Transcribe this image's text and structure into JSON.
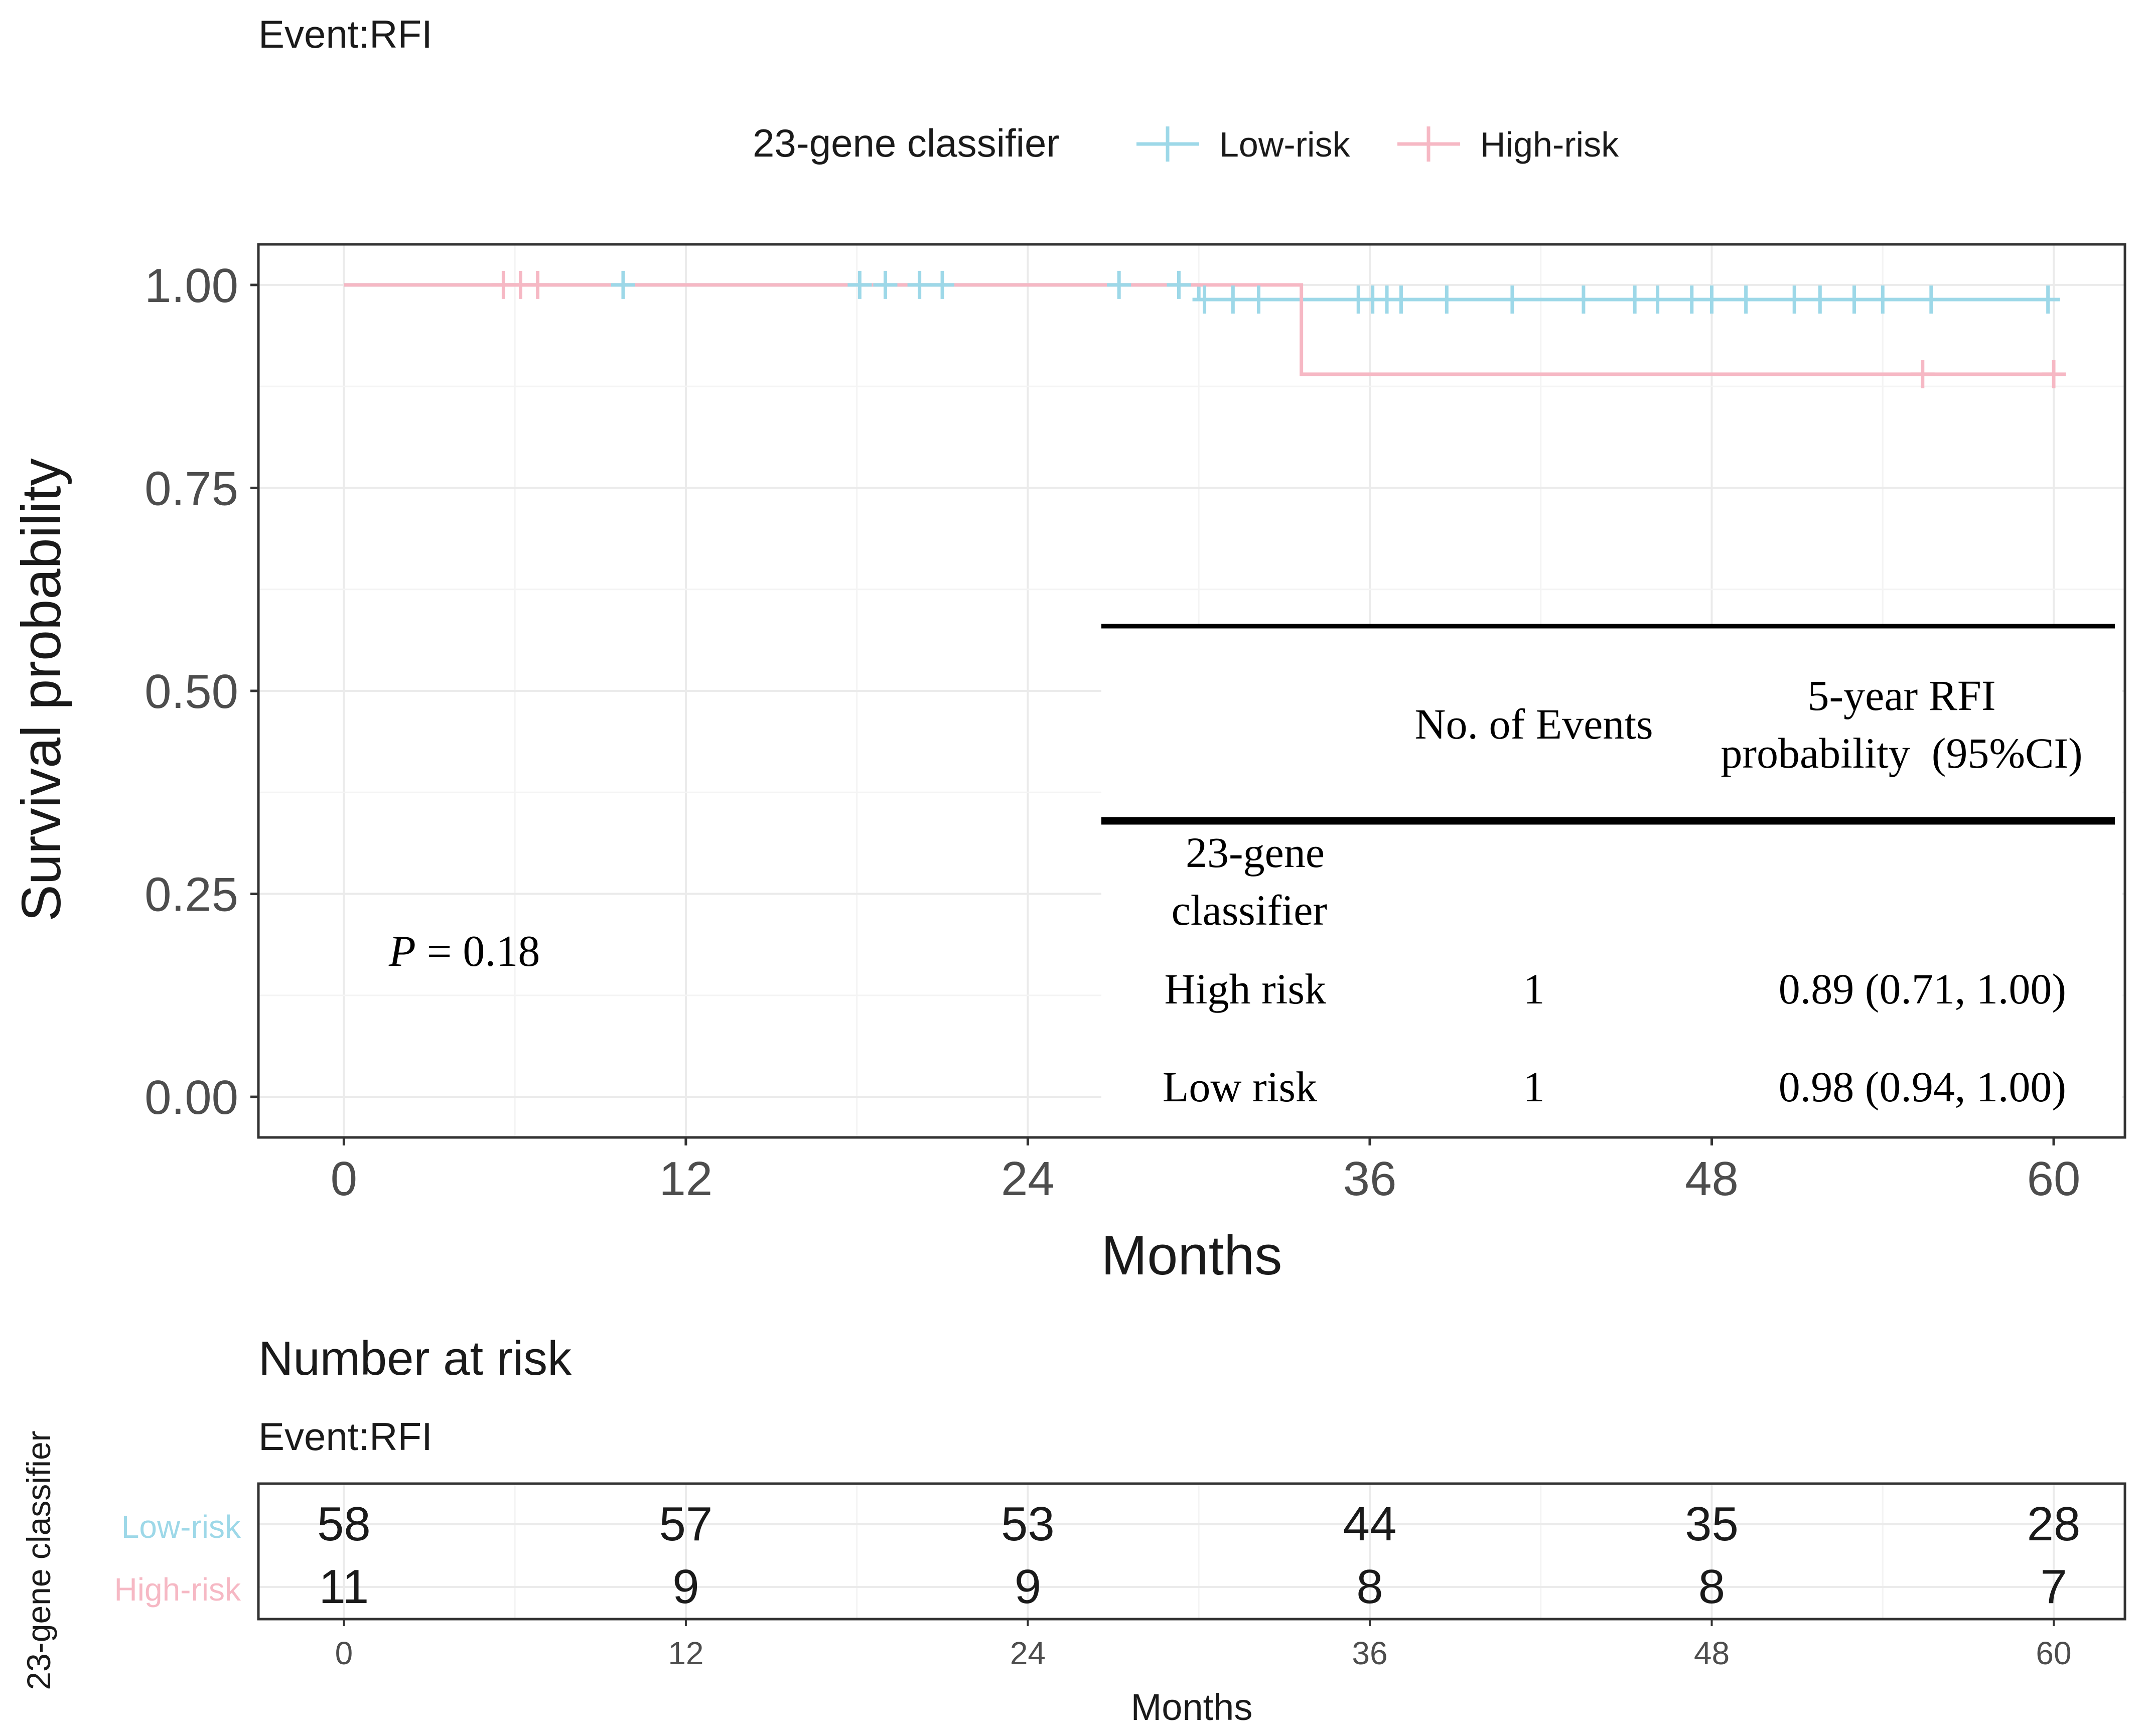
{
  "chart_data": {
    "type": "line",
    "subtype": "kaplan-meier",
    "subtitle": "Event:RFI",
    "legend": {
      "title": "23-gene classifier",
      "position": "top",
      "items": [
        {
          "label": "Low-risk",
          "color": "#9dd8e8"
        },
        {
          "label": "High-risk",
          "color": "#f6b8c4"
        }
      ]
    },
    "xlabel": "Months",
    "ylabel": "Survival probability",
    "xlim": [
      -3,
      62.5
    ],
    "ylim": [
      -0.05,
      1.05
    ],
    "xticks": [
      0,
      12,
      24,
      36,
      48,
      60
    ],
    "yticks": [
      0.0,
      0.25,
      0.5,
      0.75,
      1.0
    ],
    "ytick_labels": [
      "0.00",
      "0.25",
      "0.50",
      "0.75",
      "1.00"
    ],
    "p_value": {
      "label": "P",
      "text": " = 0.18"
    },
    "series": [
      {
        "name": "Low-risk",
        "color": "#9dd8e8",
        "steps": [
          [
            0,
            1.0
          ],
          [
            30.0,
            0.982
          ],
          [
            60.0,
            0.982
          ]
        ],
        "censor_times": [
          9.8,
          18.1,
          19.0,
          20.2,
          21.0,
          27.2,
          29.3,
          30.2,
          31.2,
          32.1,
          35.6,
          36.1,
          36.6,
          37.1,
          38.7,
          41.0,
          43.5,
          45.3,
          46.1,
          47.3,
          48.0,
          49.2,
          50.9,
          51.8,
          53.0,
          54.0,
          55.7,
          59.8
        ]
      },
      {
        "name": "High-risk",
        "color": "#f6b8c4",
        "steps": [
          [
            0,
            1.0
          ],
          [
            33.6,
            0.89
          ],
          [
            60.0,
            0.89
          ]
        ],
        "censor_times": [
          5.6,
          6.2,
          6.8,
          55.4,
          60.0
        ]
      }
    ],
    "table": {
      "headers": [
        "No. of Events",
        "5-year RFI",
        "probability  (95%CI)"
      ],
      "group_label_line1": "23-gene",
      "group_label_line2": "classifier",
      "rows": [
        {
          "label": "High risk",
          "events": "1",
          "prob": "0.89 (0.71, 1.00)"
        },
        {
          "label": "Low risk",
          "events": "1",
          "prob": "0.98 (0.94, 1.00)"
        }
      ]
    },
    "risk_table": {
      "title": "Number at risk",
      "subtitle": "Event:RFI",
      "ylabel": "23-gene classifier",
      "xlabel": "Months",
      "times": [
        0,
        12,
        24,
        36,
        48,
        60
      ],
      "rows": [
        {
          "label": "Low-risk",
          "color": "#9dd8e8",
          "counts": [
            58,
            57,
            53,
            44,
            35,
            28
          ]
        },
        {
          "label": "High-risk",
          "color": "#f6b8c4",
          "counts": [
            11,
            9,
            9,
            8,
            8,
            7
          ]
        }
      ]
    }
  }
}
